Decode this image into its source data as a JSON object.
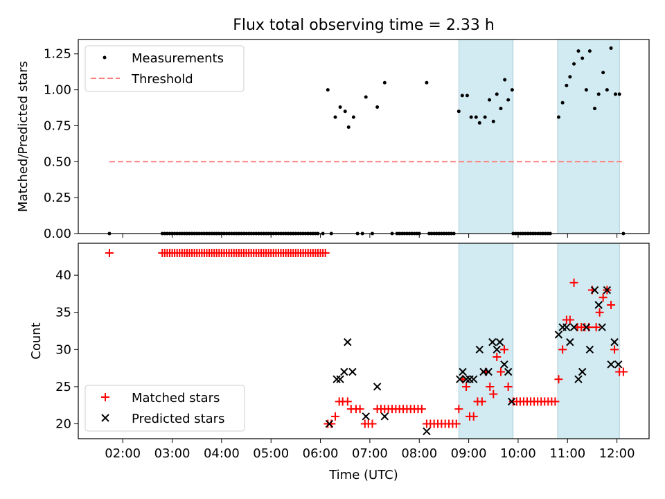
{
  "chart_data": {
    "title": "Flux total observing time = 2.33 h",
    "type": "scatter",
    "xlabel": "Time (UTC)",
    "x_unit": "hours UTC",
    "xlim": [
      1.1,
      12.65
    ],
    "x_ticks": [
      {
        "v": 2,
        "label": "02:00"
      },
      {
        "v": 3,
        "label": "03:00"
      },
      {
        "v": 4,
        "label": "04:00"
      },
      {
        "v": 5,
        "label": "05:00"
      },
      {
        "v": 6,
        "label": "06:00"
      },
      {
        "v": 7,
        "label": "07:00"
      },
      {
        "v": 8,
        "label": "08:00"
      },
      {
        "v": 9,
        "label": "09:00"
      },
      {
        "v": 10,
        "label": "10:00"
      },
      {
        "v": 11,
        "label": "11:00"
      },
      {
        "v": 12,
        "label": "12:00"
      }
    ],
    "shaded_intervals": [
      [
        8.8,
        9.9
      ],
      [
        10.8,
        12.05
      ]
    ],
    "shade_color": "#add8e6",
    "top": {
      "ylabel": "Matched/Predicted stars",
      "ylim": [
        0,
        1.35
      ],
      "y_ticks": [
        {
          "v": 0,
          "label": "0.00"
        },
        {
          "v": 0.25,
          "label": "0.25"
        },
        {
          "v": 0.5,
          "label": "0.50"
        },
        {
          "v": 0.75,
          "label": "0.75"
        },
        {
          "v": 1.0,
          "label": "1.00"
        },
        {
          "v": 1.25,
          "label": "1.25"
        }
      ],
      "legend": {
        "placement": "top-left",
        "measurements": "Measurements",
        "threshold": "Threshold"
      },
      "threshold": {
        "value": 0.5,
        "x": [
          1.73,
          12.15
        ],
        "color": "#ff7f7f"
      },
      "points": [
        [
          1.73,
          0
        ],
        [
          2.8,
          0
        ],
        [
          2.85,
          0
        ],
        [
          2.9,
          0
        ],
        [
          2.95,
          0
        ],
        [
          3.0,
          0
        ],
        [
          3.05,
          0
        ],
        [
          3.1,
          0
        ],
        [
          3.15,
          0
        ],
        [
          3.2,
          0
        ],
        [
          3.25,
          0
        ],
        [
          3.3,
          0
        ],
        [
          3.35,
          0
        ],
        [
          3.4,
          0
        ],
        [
          3.45,
          0
        ],
        [
          3.5,
          0
        ],
        [
          3.55,
          0
        ],
        [
          3.6,
          0
        ],
        [
          3.65,
          0
        ],
        [
          3.7,
          0
        ],
        [
          3.75,
          0
        ],
        [
          3.8,
          0
        ],
        [
          3.85,
          0
        ],
        [
          3.9,
          0
        ],
        [
          3.95,
          0
        ],
        [
          4.0,
          0
        ],
        [
          4.05,
          0
        ],
        [
          4.1,
          0
        ],
        [
          4.15,
          0
        ],
        [
          4.2,
          0
        ],
        [
          4.25,
          0
        ],
        [
          4.3,
          0
        ],
        [
          4.35,
          0
        ],
        [
          4.4,
          0
        ],
        [
          4.45,
          0
        ],
        [
          4.5,
          0
        ],
        [
          4.55,
          0
        ],
        [
          4.6,
          0
        ],
        [
          4.65,
          0
        ],
        [
          4.7,
          0
        ],
        [
          4.75,
          0
        ],
        [
          4.8,
          0
        ],
        [
          4.85,
          0
        ],
        [
          4.9,
          0
        ],
        [
          4.95,
          0
        ],
        [
          5.0,
          0
        ],
        [
          5.05,
          0
        ],
        [
          5.1,
          0
        ],
        [
          5.15,
          0
        ],
        [
          5.2,
          0
        ],
        [
          5.25,
          0
        ],
        [
          5.3,
          0
        ],
        [
          5.35,
          0
        ],
        [
          5.4,
          0
        ],
        [
          5.45,
          0
        ],
        [
          5.5,
          0
        ],
        [
          5.55,
          0
        ],
        [
          5.6,
          0
        ],
        [
          5.65,
          0
        ],
        [
          5.7,
          0
        ],
        [
          5.75,
          0
        ],
        [
          5.8,
          0
        ],
        [
          5.85,
          0
        ],
        [
          5.9,
          0
        ],
        [
          5.95,
          0
        ],
        [
          6.05,
          0
        ],
        [
          6.22,
          0
        ],
        [
          6.75,
          0
        ],
        [
          6.85,
          0
        ],
        [
          7.05,
          0
        ],
        [
          7.45,
          0
        ],
        [
          7.55,
          0
        ],
        [
          7.6,
          0
        ],
        [
          7.65,
          0
        ],
        [
          7.7,
          0
        ],
        [
          7.75,
          0
        ],
        [
          7.8,
          0
        ],
        [
          7.85,
          0
        ],
        [
          7.9,
          0
        ],
        [
          7.95,
          0
        ],
        [
          8.0,
          0
        ],
        [
          8.2,
          0
        ],
        [
          8.25,
          0
        ],
        [
          8.3,
          0
        ],
        [
          8.35,
          0
        ],
        [
          8.4,
          0
        ],
        [
          8.45,
          0
        ],
        [
          8.5,
          0
        ],
        [
          8.55,
          0
        ],
        [
          8.6,
          0
        ],
        [
          8.65,
          0
        ],
        [
          8.7,
          0
        ],
        [
          9.9,
          0
        ],
        [
          9.95,
          0
        ],
        [
          10.0,
          0
        ],
        [
          10.05,
          0
        ],
        [
          10.1,
          0
        ],
        [
          10.15,
          0
        ],
        [
          10.2,
          0
        ],
        [
          10.25,
          0
        ],
        [
          10.3,
          0
        ],
        [
          10.35,
          0
        ],
        [
          10.4,
          0
        ],
        [
          10.45,
          0
        ],
        [
          10.5,
          0
        ],
        [
          10.55,
          0
        ],
        [
          10.6,
          0
        ],
        [
          10.65,
          0
        ],
        [
          12.13,
          0
        ],
        [
          6.15,
          1.0
        ],
        [
          6.3,
          0.81
        ],
        [
          6.4,
          0.88
        ],
        [
          6.5,
          0.85
        ],
        [
          6.57,
          0.74
        ],
        [
          6.67,
          0.81
        ],
        [
          6.92,
          0.95
        ],
        [
          7.15,
          0.88
        ],
        [
          7.3,
          1.05
        ],
        [
          8.15,
          1.05
        ],
        [
          8.8,
          0.85
        ],
        [
          8.87,
          0.96
        ],
        [
          8.97,
          0.96
        ],
        [
          9.05,
          0.81
        ],
        [
          9.15,
          0.81
        ],
        [
          9.22,
          0.77
        ],
        [
          9.33,
          0.81
        ],
        [
          9.42,
          0.93
        ],
        [
          9.5,
          0.78
        ],
        [
          9.57,
          0.97
        ],
        [
          9.65,
          0.87
        ],
        [
          9.73,
          1.07
        ],
        [
          9.8,
          0.93
        ],
        [
          9.88,
          1.0
        ],
        [
          10.82,
          0.81
        ],
        [
          10.9,
          0.91
        ],
        [
          10.98,
          1.03
        ],
        [
          11.05,
          1.09
        ],
        [
          11.13,
          1.18
        ],
        [
          11.22,
          1.27
        ],
        [
          11.3,
          1.22
        ],
        [
          11.38,
          1.0
        ],
        [
          11.45,
          1.27
        ],
        [
          11.55,
          0.87
        ],
        [
          11.63,
          0.97
        ],
        [
          11.72,
          1.12
        ],
        [
          11.8,
          1.0
        ],
        [
          11.88,
          1.29
        ],
        [
          11.97,
          0.97
        ],
        [
          12.05,
          0.97
        ]
      ]
    },
    "bottom": {
      "ylabel": "Count",
      "ylim": [
        18,
        44.3
      ],
      "y_ticks": [
        {
          "v": 20,
          "label": "20"
        },
        {
          "v": 25,
          "label": "25"
        },
        {
          "v": 30,
          "label": "30"
        },
        {
          "v": 35,
          "label": "35"
        },
        {
          "v": 40,
          "label": "40"
        }
      ],
      "legend": {
        "placement": "bottom-left",
        "matched": "Matched stars",
        "predicted": "Predicted stars"
      },
      "matched_color": "#ff0000",
      "predicted_color": "#000000",
      "matched_runs": [
        {
          "x0": 2.8,
          "x1": 6.1,
          "step": 0.05,
          "y": 43
        },
        {
          "x0": 7.15,
          "x1": 8.05,
          "step": 0.075,
          "y": 22
        },
        {
          "x0": 8.15,
          "x1": 8.75,
          "step": 0.075,
          "y": 20
        },
        {
          "x0": 9.9,
          "x1": 10.75,
          "step": 0.0708,
          "y": 23
        }
      ],
      "matched": [
        [
          1.73,
          43
        ],
        [
          6.15,
          20
        ],
        [
          6.22,
          20
        ],
        [
          6.3,
          21
        ],
        [
          6.38,
          23
        ],
        [
          6.45,
          23
        ],
        [
          6.55,
          23
        ],
        [
          6.62,
          22
        ],
        [
          6.72,
          22
        ],
        [
          6.8,
          22
        ],
        [
          6.9,
          20
        ],
        [
          6.97,
          20
        ],
        [
          7.05,
          20
        ],
        [
          8.8,
          22
        ],
        [
          8.88,
          26
        ],
        [
          8.95,
          25
        ],
        [
          9.02,
          21
        ],
        [
          9.1,
          21
        ],
        [
          9.18,
          23
        ],
        [
          9.27,
          23
        ],
        [
          9.35,
          27
        ],
        [
          9.43,
          25
        ],
        [
          9.5,
          24
        ],
        [
          9.57,
          29
        ],
        [
          9.65,
          27
        ],
        [
          9.72,
          30
        ],
        [
          9.8,
          25
        ],
        [
          10.82,
          26
        ],
        [
          10.9,
          30
        ],
        [
          10.98,
          34
        ],
        [
          11.05,
          34
        ],
        [
          11.13,
          39
        ],
        [
          11.2,
          33
        ],
        [
          11.28,
          33
        ],
        [
          11.35,
          33
        ],
        [
          11.43,
          33
        ],
        [
          11.5,
          38
        ],
        [
          11.58,
          33
        ],
        [
          11.65,
          35
        ],
        [
          11.72,
          37
        ],
        [
          11.8,
          38
        ],
        [
          11.88,
          36
        ],
        [
          11.95,
          30
        ],
        [
          12.05,
          27
        ],
        [
          12.13,
          27
        ]
      ],
      "predicted": [
        [
          6.18,
          20
        ],
        [
          6.33,
          26
        ],
        [
          6.4,
          26
        ],
        [
          6.48,
          27
        ],
        [
          6.55,
          31
        ],
        [
          6.65,
          27
        ],
        [
          6.92,
          21
        ],
        [
          7.15,
          25
        ],
        [
          7.3,
          21
        ],
        [
          8.15,
          19
        ],
        [
          8.82,
          26
        ],
        [
          8.88,
          27
        ],
        [
          8.95,
          26
        ],
        [
          9.02,
          26
        ],
        [
          9.1,
          26
        ],
        [
          9.22,
          30
        ],
        [
          9.3,
          27
        ],
        [
          9.4,
          27
        ],
        [
          9.48,
          31
        ],
        [
          9.57,
          30
        ],
        [
          9.63,
          31
        ],
        [
          9.72,
          28
        ],
        [
          9.8,
          27
        ],
        [
          9.87,
          23
        ],
        [
          10.82,
          32
        ],
        [
          10.9,
          33
        ],
        [
          10.98,
          33
        ],
        [
          11.05,
          31
        ],
        [
          11.13,
          33
        ],
        [
          11.22,
          26
        ],
        [
          11.3,
          27
        ],
        [
          11.38,
          33
        ],
        [
          11.45,
          30
        ],
        [
          11.55,
          38
        ],
        [
          11.63,
          36
        ],
        [
          11.7,
          33
        ],
        [
          11.8,
          38
        ],
        [
          11.88,
          28
        ],
        [
          11.95,
          31
        ],
        [
          12.03,
          28
        ]
      ]
    }
  }
}
